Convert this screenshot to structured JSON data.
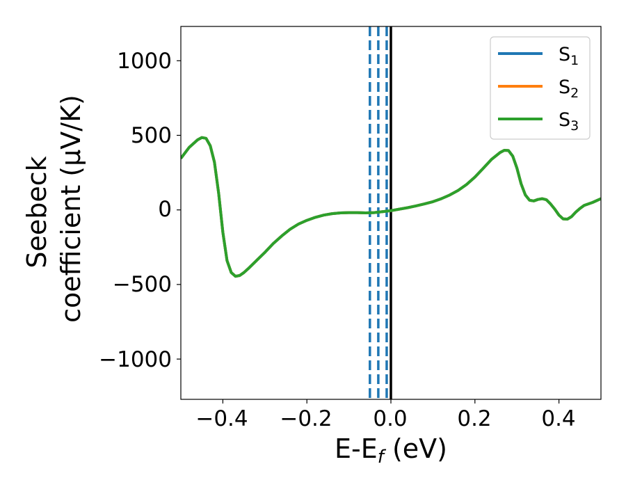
{
  "chart_data": {
    "type": "line",
    "title": "",
    "xlabel": {
      "main": "E-E",
      "sub": "f",
      "unit": " (eV)"
    },
    "ylabel": {
      "line1": "Seebeck",
      "line2": "coefficient  (μV/K)"
    },
    "xlim": [
      -0.5,
      0.5
    ],
    "ylim": [
      -1270,
      1230
    ],
    "xticks": [
      -0.4,
      -0.2,
      0.0,
      0.2,
      0.4
    ],
    "xtick_labels": [
      "−0.4",
      "−0.2",
      "0.0",
      "0.2",
      "0.4"
    ],
    "yticks": [
      -1000,
      -500,
      0,
      500,
      1000
    ],
    "ytick_labels": [
      "−1000",
      "−500",
      "0",
      "500",
      "1000"
    ],
    "grid": false,
    "legend_position": "top-right",
    "series": [
      {
        "name": "S",
        "sub": "1",
        "color": "#1f77b4"
      },
      {
        "name": "S",
        "sub": "2",
        "color": "#ff7f0e"
      },
      {
        "name": "S",
        "sub": "3",
        "color": "#2ca02c"
      }
    ],
    "x": [
      -0.5,
      -0.48,
      -0.46,
      -0.45,
      -0.44,
      -0.43,
      -0.42,
      -0.41,
      -0.4,
      -0.39,
      -0.38,
      -0.37,
      -0.36,
      -0.35,
      -0.34,
      -0.32,
      -0.3,
      -0.28,
      -0.26,
      -0.24,
      -0.22,
      -0.2,
      -0.18,
      -0.16,
      -0.14,
      -0.12,
      -0.1,
      -0.08,
      -0.06,
      -0.04,
      -0.02,
      0.0,
      0.02,
      0.04,
      0.06,
      0.08,
      0.1,
      0.12,
      0.14,
      0.16,
      0.18,
      0.2,
      0.22,
      0.24,
      0.26,
      0.27,
      0.28,
      0.29,
      0.3,
      0.31,
      0.32,
      0.33,
      0.34,
      0.35,
      0.36,
      0.37,
      0.38,
      0.39,
      0.4,
      0.41,
      0.42,
      0.43,
      0.44,
      0.45,
      0.46,
      0.48,
      0.5
    ],
    "y": [
      345,
      420,
      470,
      485,
      480,
      430,
      320,
      110,
      -150,
      -340,
      -420,
      -445,
      -440,
      -420,
      -395,
      -340,
      -285,
      -225,
      -175,
      -130,
      -95,
      -70,
      -50,
      -35,
      -25,
      -20,
      -18,
      -18,
      -20,
      -18,
      -12,
      -5,
      5,
      15,
      27,
      40,
      55,
      75,
      100,
      130,
      170,
      220,
      280,
      340,
      385,
      400,
      398,
      360,
      280,
      175,
      100,
      65,
      60,
      70,
      75,
      68,
      40,
      5,
      -35,
      -60,
      -62,
      -45,
      -15,
      10,
      30,
      50,
      75
    ],
    "vlines_dashed": [
      -0.05,
      -0.03,
      -0.01
    ],
    "vline_dashed_color": "#1f77b4",
    "vline_solid": 0.0,
    "vline_solid_color": "#000000"
  }
}
